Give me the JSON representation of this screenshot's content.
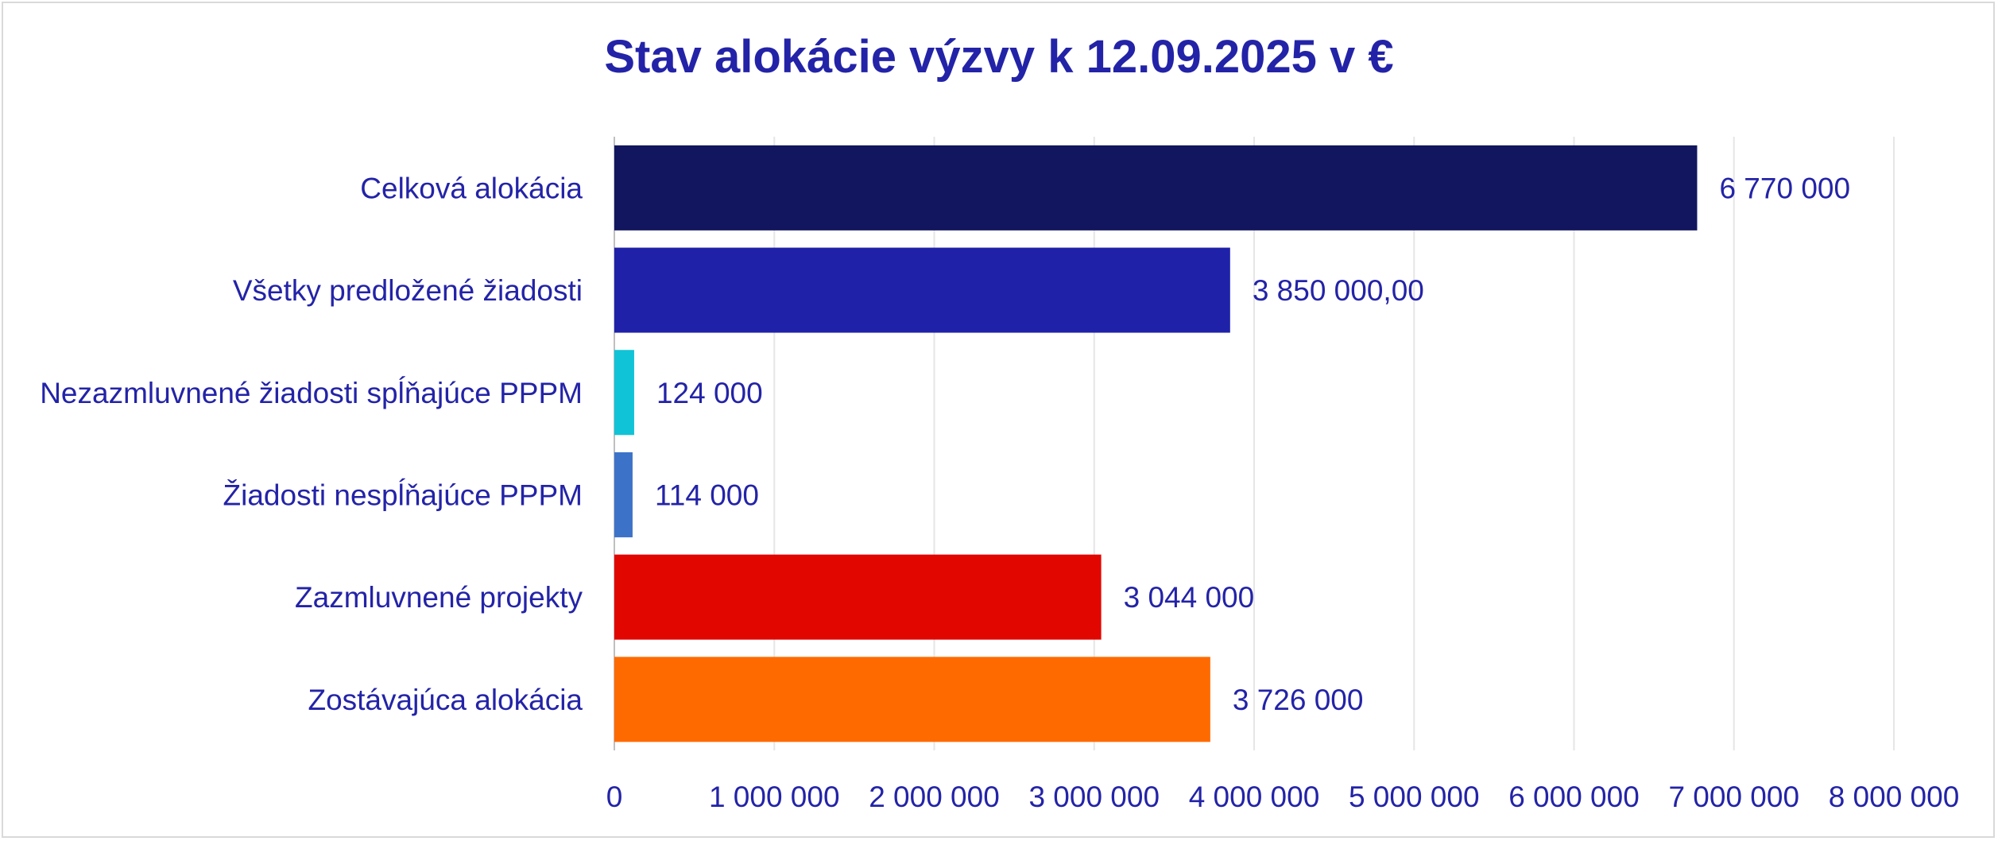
{
  "chart_data": {
    "type": "bar",
    "orientation": "horizontal",
    "title": "Stav alokácie výzvy k 12.09.2025 v €",
    "categories": [
      "Celková alokácia",
      "Všetky predložené žiadosti",
      "Nezazmluvnené žiadosti spĺňajúce PPPM",
      "Žiadosti nespĺňajúce PPPM",
      "Zazmluvnené projekty",
      "Zostávajúca alokácia"
    ],
    "values": [
      6770000,
      3850000,
      124000,
      114000,
      3044000,
      3726000
    ],
    "data_labels": [
      "6 770 000",
      "3 850 000,00",
      "124 000",
      "114 000",
      "3 044 000",
      "3 726 000"
    ],
    "bar_colors": [
      "#12165e",
      "#1f22a8",
      "#11c3d6",
      "#3d72c9",
      "#e10600",
      "#ff6a00"
    ],
    "xlim": [
      0,
      8000000
    ],
    "x_ticks": [
      0,
      1000000,
      2000000,
      3000000,
      4000000,
      5000000,
      6000000,
      7000000,
      8000000
    ],
    "x_tick_labels": [
      "0",
      "1 000 000",
      "2 000 000",
      "3 000 000",
      "4 000 000",
      "5 000 000",
      "6 000 000",
      "7 000 000",
      "8 000 000"
    ],
    "grid": true,
    "legend": "none",
    "text_color": "#2323a8",
    "grid_color": "#e6e6e6"
  }
}
